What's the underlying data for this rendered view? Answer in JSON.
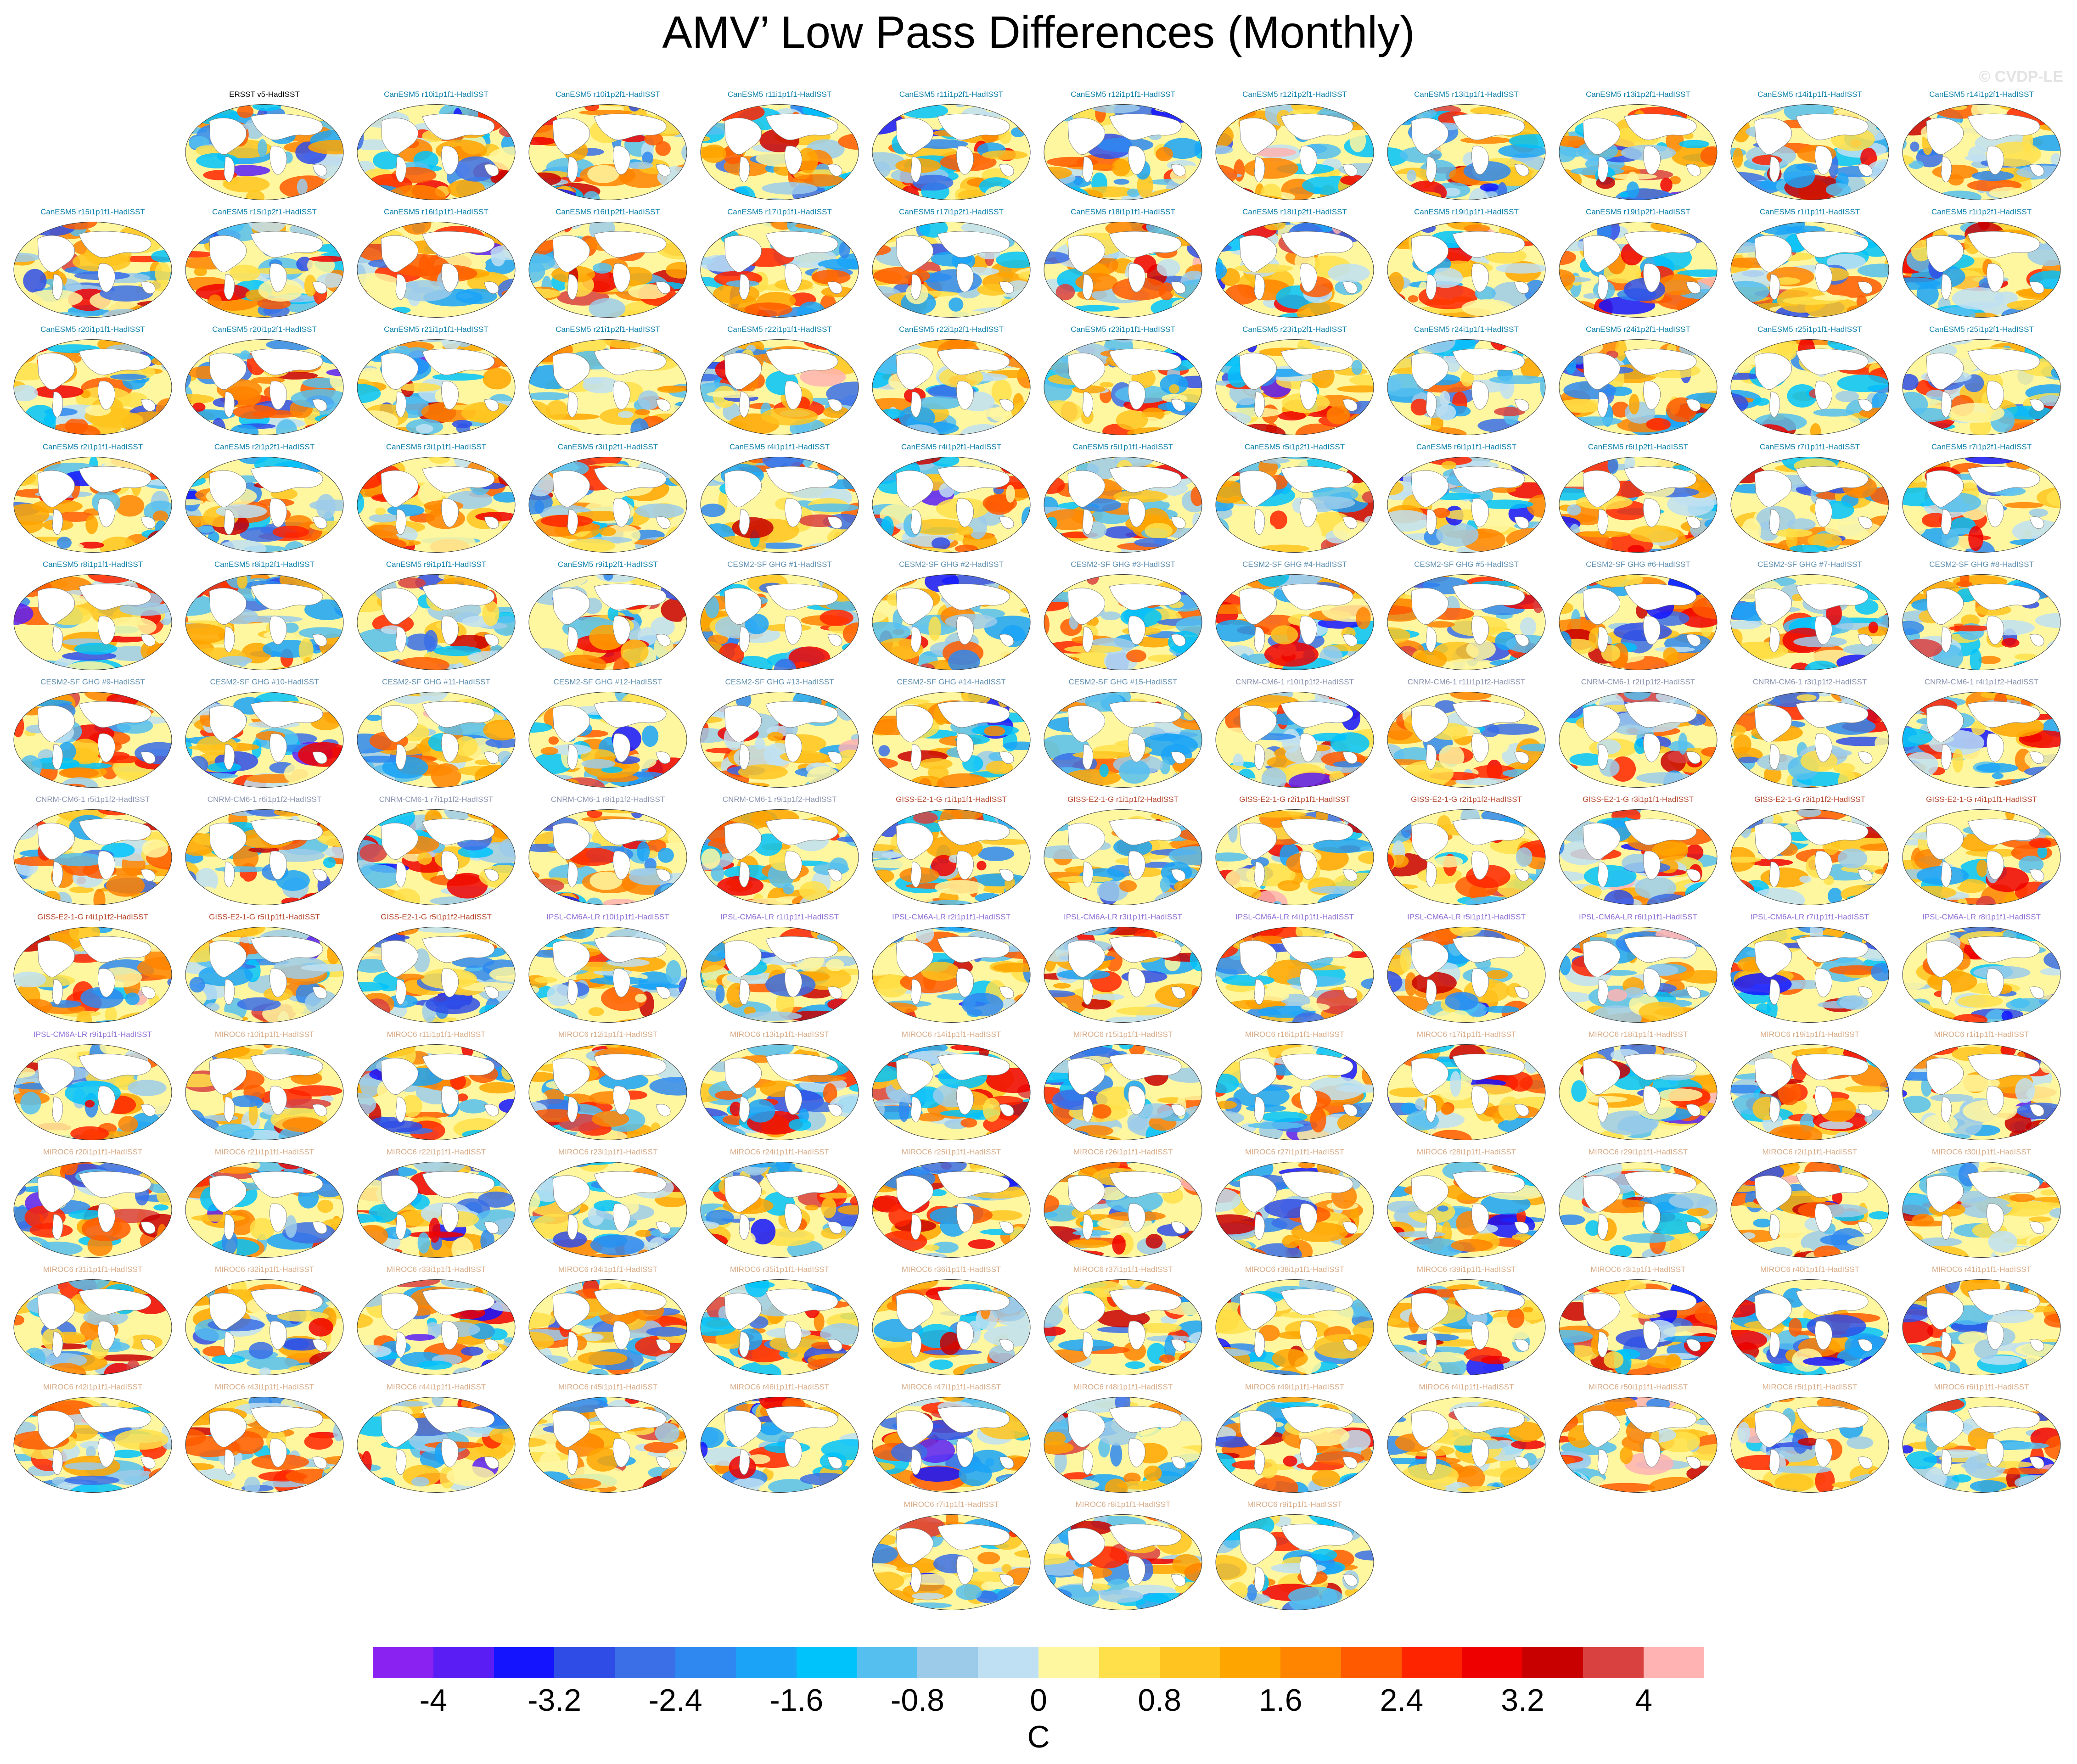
{
  "title": "AMV’ Low Pass Differences (Monthly)",
  "watermark": "© CVDP-LE",
  "panels": [
    {
      "label": "ERSST v5-HadISST",
      "color": "#000000"
    },
    {
      "label": "CanESM5 r10i1p1f1-HadISST",
      "color": "#0b7fa8"
    },
    {
      "label": "CanESM5 r10i1p2f1-HadISST",
      "color": "#0b7fa8"
    },
    {
      "label": "CanESM5 r11i1p1f1-HadISST",
      "color": "#0b7fa8"
    },
    {
      "label": "CanESM5 r11i1p2f1-HadISST",
      "color": "#0b7fa8"
    },
    {
      "label": "CanESM5 r12i1p1f1-HadISST",
      "color": "#0b7fa8"
    },
    {
      "label": "CanESM5 r12i1p2f1-HadISST",
      "color": "#0b7fa8"
    },
    {
      "label": "CanESM5 r13i1p1f1-HadISST",
      "color": "#0b7fa8"
    },
    {
      "label": "CanESM5 r13i1p2f1-HadISST",
      "color": "#0b7fa8"
    },
    {
      "label": "CanESM5 r14i1p1f1-HadISST",
      "color": "#0b7fa8"
    },
    {
      "label": "CanESM5 r14i1p2f1-HadISST",
      "color": "#0b7fa8"
    },
    {
      "label": "CanESM5 r15i1p1f1-HadISST",
      "color": "#0b7fa8"
    },
    {
      "label": "CanESM5 r15i1p2f1-HadISST",
      "color": "#0b7fa8"
    },
    {
      "label": "CanESM5 r16i1p1f1-HadISST",
      "color": "#0b7fa8"
    },
    {
      "label": "CanESM5 r16i1p2f1-HadISST",
      "color": "#0b7fa8"
    },
    {
      "label": "CanESM5 r17i1p1f1-HadISST",
      "color": "#0b7fa8"
    },
    {
      "label": "CanESM5 r17i1p2f1-HadISST",
      "color": "#0b7fa8"
    },
    {
      "label": "CanESM5 r18i1p1f1-HadISST",
      "color": "#0b7fa8"
    },
    {
      "label": "CanESM5 r18i1p2f1-HadISST",
      "color": "#0b7fa8"
    },
    {
      "label": "CanESM5 r19i1p1f1-HadISST",
      "color": "#0b7fa8"
    },
    {
      "label": "CanESM5 r19i1p2f1-HadISST",
      "color": "#0b7fa8"
    },
    {
      "label": "CanESM5 r1i1p1f1-HadISST",
      "color": "#0b7fa8"
    },
    {
      "label": "CanESM5 r1i1p2f1-HadISST",
      "color": "#0b7fa8"
    },
    {
      "label": "CanESM5 r20i1p1f1-HadISST",
      "color": "#0b7fa8"
    },
    {
      "label": "CanESM5 r20i1p2f1-HadISST",
      "color": "#0b7fa8"
    },
    {
      "label": "CanESM5 r21i1p1f1-HadISST",
      "color": "#0b7fa8"
    },
    {
      "label": "CanESM5 r21i1p2f1-HadISST",
      "color": "#0b7fa8"
    },
    {
      "label": "CanESM5 r22i1p1f1-HadISST",
      "color": "#0b7fa8"
    },
    {
      "label": "CanESM5 r22i1p2f1-HadISST",
      "color": "#0b7fa8"
    },
    {
      "label": "CanESM5 r23i1p1f1-HadISST",
      "color": "#0b7fa8"
    },
    {
      "label": "CanESM5 r23i1p2f1-HadISST",
      "color": "#0b7fa8"
    },
    {
      "label": "CanESM5 r24i1p1f1-HadISST",
      "color": "#0b7fa8"
    },
    {
      "label": "CanESM5 r24i1p2f1-HadISST",
      "color": "#0b7fa8"
    },
    {
      "label": "CanESM5 r25i1p1f1-HadISST",
      "color": "#0b7fa8"
    },
    {
      "label": "CanESM5 r25i1p2f1-HadISST",
      "color": "#0b7fa8"
    },
    {
      "label": "CanESM5 r2i1p1f1-HadISST",
      "color": "#0b7fa8"
    },
    {
      "label": "CanESM5 r2i1p2f1-HadISST",
      "color": "#0b7fa8"
    },
    {
      "label": "CanESM5 r3i1p1f1-HadISST",
      "color": "#0b7fa8"
    },
    {
      "label": "CanESM5 r3i1p2f1-HadISST",
      "color": "#0b7fa8"
    },
    {
      "label": "CanESM5 r4i1p1f1-HadISST",
      "color": "#0b7fa8"
    },
    {
      "label": "CanESM5 r4i1p2f1-HadISST",
      "color": "#0b7fa8"
    },
    {
      "label": "CanESM5 r5i1p1f1-HadISST",
      "color": "#0b7fa8"
    },
    {
      "label": "CanESM5 r5i1p2f1-HadISST",
      "color": "#0b7fa8"
    },
    {
      "label": "CanESM5 r6i1p1f1-HadISST",
      "color": "#0b7fa8"
    },
    {
      "label": "CanESM5 r6i1p2f1-HadISST",
      "color": "#0b7fa8"
    },
    {
      "label": "CanESM5 r7i1p1f1-HadISST",
      "color": "#0b7fa8"
    },
    {
      "label": "CanESM5 r7i1p2f1-HadISST",
      "color": "#0b7fa8"
    },
    {
      "label": "CanESM5 r8i1p1f1-HadISST",
      "color": "#0b7fa8"
    },
    {
      "label": "CanESM5 r8i1p2f1-HadISST",
      "color": "#0b7fa8"
    },
    {
      "label": "CanESM5 r9i1p1f1-HadISST",
      "color": "#0b7fa8"
    },
    {
      "label": "CanESM5 r9i1p2f1-HadISST",
      "color": "#0b7fa8"
    },
    {
      "label": "CESM2-SF GHG #1-HadISST",
      "color": "#5f8fb0"
    },
    {
      "label": "CESM2-SF GHG #2-HadISST",
      "color": "#5f8fb0"
    },
    {
      "label": "CESM2-SF GHG #3-HadISST",
      "color": "#5f8fb0"
    },
    {
      "label": "CESM2-SF GHG #4-HadISST",
      "color": "#5f8fb0"
    },
    {
      "label": "CESM2-SF GHG #5-HadISST",
      "color": "#5f8fb0"
    },
    {
      "label": "CESM2-SF GHG #6-HadISST",
      "color": "#5f8fb0"
    },
    {
      "label": "CESM2-SF GHG #7-HadISST",
      "color": "#5f8fb0"
    },
    {
      "label": "CESM2-SF GHG #8-HadISST",
      "color": "#5f8fb0"
    },
    {
      "label": "CESM2-SF GHG #9-HadISST",
      "color": "#5f8fb0"
    },
    {
      "label": "CESM2-SF GHG #10-HadISST",
      "color": "#5f8fb0"
    },
    {
      "label": "CESM2-SF GHG #11-HadISST",
      "color": "#5f8fb0"
    },
    {
      "label": "CESM2-SF GHG #12-HadISST",
      "color": "#5f8fb0"
    },
    {
      "label": "CESM2-SF GHG #13-HadISST",
      "color": "#5f8fb0"
    },
    {
      "label": "CESM2-SF GHG #14-HadISST",
      "color": "#5f8fb0"
    },
    {
      "label": "CESM2-SF GHG #15-HadISST",
      "color": "#5f8fb0"
    },
    {
      "label": "CNRM-CM6-1 r10i1p1f2-HadISST",
      "color": "#8a93b0"
    },
    {
      "label": "CNRM-CM6-1 r11i1p1f2-HadISST",
      "color": "#8a93b0"
    },
    {
      "label": "CNRM-CM6-1 r2i1p1f2-HadISST",
      "color": "#8a93b0"
    },
    {
      "label": "CNRM-CM6-1 r3i1p1f2-HadISST",
      "color": "#8a93b0"
    },
    {
      "label": "CNRM-CM6-1 r4i1p1f2-HadISST",
      "color": "#8a93b0"
    },
    {
      "label": "CNRM-CM6-1 r5i1p1f2-HadISST",
      "color": "#8a93b0"
    },
    {
      "label": "CNRM-CM6-1 r6i1p1f2-HadISST",
      "color": "#8a93b0"
    },
    {
      "label": "CNRM-CM6-1 r7i1p1f2-HadISST",
      "color": "#8a93b0"
    },
    {
      "label": "CNRM-CM6-1 r8i1p1f2-HadISST",
      "color": "#8a93b0"
    },
    {
      "label": "CNRM-CM6-1 r9i1p1f2-HadISST",
      "color": "#8a93b0"
    },
    {
      "label": "GISS-E2-1-G r1i1p1f1-HadISST",
      "color": "#b5452b"
    },
    {
      "label": "GISS-E2-1-G r1i1p1f2-HadISST",
      "color": "#b5452b"
    },
    {
      "label": "GISS-E2-1-G r2i1p1f1-HadISST",
      "color": "#b5452b"
    },
    {
      "label": "GISS-E2-1-G r2i1p1f2-HadISST",
      "color": "#b5452b"
    },
    {
      "label": "GISS-E2-1-G r3i1p1f1-HadISST",
      "color": "#b5452b"
    },
    {
      "label": "GISS-E2-1-G r3i1p1f2-HadISST",
      "color": "#b5452b"
    },
    {
      "label": "GISS-E2-1-G r4i1p1f1-HadISST",
      "color": "#b5452b"
    },
    {
      "label": "GISS-E2-1-G r4i1p1f2-HadISST",
      "color": "#b5452b"
    },
    {
      "label": "GISS-E2-1-G r5i1p1f1-HadISST",
      "color": "#b5452b"
    },
    {
      "label": "GISS-E2-1-G r5i1p1f2-HadISST",
      "color": "#b5452b"
    },
    {
      "label": "IPSL-CM6A-LR r10i1p1f1-HadISST",
      "color": "#8f6fd4"
    },
    {
      "label": "IPSL-CM6A-LR r1i1p1f1-HadISST",
      "color": "#8f6fd4"
    },
    {
      "label": "IPSL-CM6A-LR r2i1p1f1-HadISST",
      "color": "#8f6fd4"
    },
    {
      "label": "IPSL-CM6A-LR r3i1p1f1-HadISST",
      "color": "#8f6fd4"
    },
    {
      "label": "IPSL-CM6A-LR r4i1p1f1-HadISST",
      "color": "#8f6fd4"
    },
    {
      "label": "IPSL-CM6A-LR r5i1p1f1-HadISST",
      "color": "#8f6fd4"
    },
    {
      "label": "IPSL-CM6A-LR r6i1p1f1-HadISST",
      "color": "#8f6fd4"
    },
    {
      "label": "IPSL-CM6A-LR r7i1p1f1-HadISST",
      "color": "#8f6fd4"
    },
    {
      "label": "IPSL-CM6A-LR r8i1p1f1-HadISST",
      "color": "#8f6fd4"
    },
    {
      "label": "IPSL-CM6A-LR r9i1p1f1-HadISST",
      "color": "#8f6fd4"
    },
    {
      "label": "MIROC6 r10i1p1f1-HadISST",
      "color": "#d8ab86"
    },
    {
      "label": "MIROC6 r11i1p1f1-HadISST",
      "color": "#d8ab86"
    },
    {
      "label": "MIROC6 r12i1p1f1-HadISST",
      "color": "#d8ab86"
    },
    {
      "label": "MIROC6 r13i1p1f1-HadISST",
      "color": "#d8ab86"
    },
    {
      "label": "MIROC6 r14i1p1f1-HadISST",
      "color": "#d8ab86"
    },
    {
      "label": "MIROC6 r15i1p1f1-HadISST",
      "color": "#d8ab86"
    },
    {
      "label": "MIROC6 r16i1p1f1-HadISST",
      "color": "#d8ab86"
    },
    {
      "label": "MIROC6 r17i1p1f1-HadISST",
      "color": "#d8ab86"
    },
    {
      "label": "MIROC6 r18i1p1f1-HadISST",
      "color": "#d8ab86"
    },
    {
      "label": "MIROC6 r19i1p1f1-HadISST",
      "color": "#d8ab86"
    },
    {
      "label": "MIROC6 r1i1p1f1-HadISST",
      "color": "#d8ab86"
    },
    {
      "label": "MIROC6 r20i1p1f1-HadISST",
      "color": "#d8ab86"
    },
    {
      "label": "MIROC6 r21i1p1f1-HadISST",
      "color": "#d8ab86"
    },
    {
      "label": "MIROC6 r22i1p1f1-HadISST",
      "color": "#d8ab86"
    },
    {
      "label": "MIROC6 r23i1p1f1-HadISST",
      "color": "#d8ab86"
    },
    {
      "label": "MIROC6 r24i1p1f1-HadISST",
      "color": "#d8ab86"
    },
    {
      "label": "MIROC6 r25i1p1f1-HadISST",
      "color": "#d8ab86"
    },
    {
      "label": "MIROC6 r26i1p1f1-HadISST",
      "color": "#d8ab86"
    },
    {
      "label": "MIROC6 r27i1p1f1-HadISST",
      "color": "#d8ab86"
    },
    {
      "label": "MIROC6 r28i1p1f1-HadISST",
      "color": "#d8ab86"
    },
    {
      "label": "MIROC6 r29i1p1f1-HadISST",
      "color": "#d8ab86"
    },
    {
      "label": "MIROC6 r2i1p1f1-HadISST",
      "color": "#d8ab86"
    },
    {
      "label": "MIROC6 r30i1p1f1-HadISST",
      "color": "#d8ab86"
    },
    {
      "label": "MIROC6 r31i1p1f1-HadISST",
      "color": "#d8ab86"
    },
    {
      "label": "MIROC6 r32i1p1f1-HadISST",
      "color": "#d8ab86"
    },
    {
      "label": "MIROC6 r33i1p1f1-HadISST",
      "color": "#d8ab86"
    },
    {
      "label": "MIROC6 r34i1p1f1-HadISST",
      "color": "#d8ab86"
    },
    {
      "label": "MIROC6 r35i1p1f1-HadISST",
      "color": "#d8ab86"
    },
    {
      "label": "MIROC6 r36i1p1f1-HadISST",
      "color": "#d8ab86"
    },
    {
      "label": "MIROC6 r37i1p1f1-HadISST",
      "color": "#d8ab86"
    },
    {
      "label": "MIROC6 r38i1p1f1-HadISST",
      "color": "#d8ab86"
    },
    {
      "label": "MIROC6 r39i1p1f1-HadISST",
      "color": "#d8ab86"
    },
    {
      "label": "MIROC6 r3i1p1f1-HadISST",
      "color": "#d8ab86"
    },
    {
      "label": "MIROC6 r40i1p1f1-HadISST",
      "color": "#d8ab86"
    },
    {
      "label": "MIROC6 r41i1p1f1-HadISST",
      "color": "#d8ab86"
    },
    {
      "label": "MIROC6 r42i1p1f1-HadISST",
      "color": "#d8ab86"
    },
    {
      "label": "MIROC6 r43i1p1f1-HadISST",
      "color": "#d8ab86"
    },
    {
      "label": "MIROC6 r44i1p1f1-HadISST",
      "color": "#d8ab86"
    },
    {
      "label": "MIROC6 r45i1p1f1-HadISST",
      "color": "#d8ab86"
    },
    {
      "label": "MIROC6 r46i1p1f1-HadISST",
      "color": "#d8ab86"
    },
    {
      "label": "MIROC6 r47i1p1f1-HadISST",
      "color": "#d8ab86"
    },
    {
      "label": "MIROC6 r48i1p1f1-HadISST",
      "color": "#d8ab86"
    },
    {
      "label": "MIROC6 r49i1p1f1-HadISST",
      "color": "#d8ab86"
    },
    {
      "label": "MIROC6 r4i1p1f1-HadISST",
      "color": "#d8ab86"
    },
    {
      "label": "MIROC6 r50i1p1f1-HadISST",
      "color": "#d8ab86"
    },
    {
      "label": "MIROC6 r5i1p1f1-HadISST",
      "color": "#d8ab86"
    },
    {
      "label": "MIROC6 r6i1p1f1-HadISST",
      "color": "#d8ab86"
    },
    {
      "label": "MIROC6 r7i1p1f1-HadISST",
      "color": "#d8ab86"
    },
    {
      "label": "MIROC6 r8i1p1f1-HadISST",
      "color": "#d8ab86"
    },
    {
      "label": "MIROC6 r9i1p1f1-HadISST",
      "color": "#d8ab86"
    }
  ],
  "colorbar": {
    "units": "C",
    "tick_labels": [
      "-4",
      "-3.2",
      "-2.4",
      "-1.6",
      "-0.8",
      "0",
      "0.8",
      "1.6",
      "2.4",
      "3.2",
      "4"
    ],
    "colors": [
      "#8a22f2",
      "#5a1ef5",
      "#1414ff",
      "#2f4de6",
      "#3a6fe8",
      "#2e88f0",
      "#1aa3f7",
      "#00c3fb",
      "#55bff0",
      "#9ccbea",
      "#bfe0f2",
      "#fff7a0",
      "#ffe04a",
      "#ffc41f",
      "#ffa500",
      "#ff8400",
      "#ff5a00",
      "#ff2400",
      "#ee0000",
      "#c80000",
      "#d94040",
      "#ffb3b3"
    ]
  }
}
